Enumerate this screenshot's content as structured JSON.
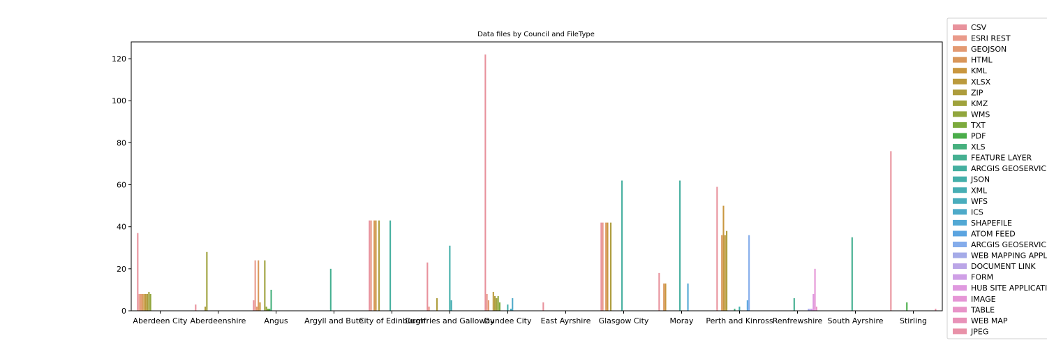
{
  "chart_data": {
    "type": "bar",
    "title": "Data files by Council and FileType",
    "xlabel": "",
    "ylabel": "",
    "ylim": [
      0,
      128
    ],
    "yticks": [
      0,
      20,
      40,
      60,
      80,
      100,
      120
    ],
    "legend_position": "right",
    "categories": [
      "Aberdeen City",
      "Aberdeenshire",
      "Angus",
      "Argyll and Bute",
      "City of Edinburgh",
      "Dumfries and Galloway",
      "Dundee City",
      "East Ayrshire",
      "Glasgow City",
      "Moray",
      "Perth and Kinross",
      "Renfrewshire",
      "South Ayrshire",
      "Stirling"
    ],
    "series": [
      {
        "name": "CSV",
        "color": "#e8929c",
        "values": [
          37,
          3,
          5,
          0,
          43,
          23,
          122,
          4,
          42,
          18,
          59,
          0,
          0,
          76
        ]
      },
      {
        "name": "ESRI REST",
        "color": "#e99a8a",
        "values": [
          8,
          0,
          24,
          0,
          43,
          2,
          8,
          0,
          42,
          0,
          0,
          0,
          0,
          0
        ]
      },
      {
        "name": "GEOJSON",
        "color": "#e39a72",
        "values": [
          8,
          0,
          2,
          0,
          0,
          0,
          5,
          0,
          0,
          0,
          0,
          0,
          0,
          0
        ]
      },
      {
        "name": "HTML",
        "color": "#d9975a",
        "values": [
          8,
          0,
          24,
          0,
          43,
          0,
          0,
          0,
          42,
          13,
          36,
          0,
          0,
          0
        ]
      },
      {
        "name": "KML",
        "color": "#c9973f",
        "values": [
          8,
          0,
          4,
          0,
          43,
          0,
          0,
          0,
          42,
          13,
          50,
          0,
          0,
          0
        ]
      },
      {
        "name": "XLSX",
        "color": "#bb9a3d",
        "values": [
          8,
          0,
          0,
          0,
          0,
          0,
          9,
          0,
          0,
          0,
          36,
          0,
          0,
          0
        ]
      },
      {
        "name": "ZIP",
        "color": "#ad9c3c",
        "values": [
          8,
          2,
          0,
          0,
          43,
          6,
          7,
          0,
          42,
          0,
          38,
          0,
          0,
          0
        ]
      },
      {
        "name": "KMZ",
        "color": "#9fa23c",
        "values": [
          9,
          28,
          24,
          0,
          0,
          0,
          6,
          0,
          0,
          0,
          0,
          0,
          0,
          0
        ]
      },
      {
        "name": "WMS",
        "color": "#91a63d",
        "values": [
          8,
          0,
          2,
          0,
          0,
          0,
          7,
          0,
          0,
          0,
          0,
          0,
          0,
          0
        ]
      },
      {
        "name": "TXT",
        "color": "#7caa3d",
        "values": [
          0,
          0,
          1,
          0,
          0,
          0,
          4,
          0,
          0,
          0,
          0,
          0,
          0,
          0
        ]
      },
      {
        "name": "PDF",
        "color": "#4aad4a",
        "values": [
          0,
          0,
          1,
          0,
          0,
          0,
          0,
          0,
          0,
          0,
          0,
          0,
          0,
          4
        ]
      },
      {
        "name": "XLS",
        "color": "#46b07e",
        "values": [
          0,
          0,
          10,
          0,
          0,
          0,
          0,
          0,
          0,
          0,
          1,
          0,
          0,
          0
        ]
      },
      {
        "name": "FEATURE LAYER",
        "color": "#45b091",
        "values": [
          0,
          0,
          0,
          20,
          0,
          0,
          0,
          0,
          0,
          0,
          0,
          6,
          35,
          0
        ]
      },
      {
        "name": "ARCGIS GEOSERVICE",
        "color": "#44af9f",
        "values": [
          0,
          0,
          0,
          0,
          43,
          0,
          0,
          0,
          62,
          62,
          0,
          0,
          0,
          0
        ]
      },
      {
        "name": "JSON",
        "color": "#44afaa",
        "values": [
          0,
          0,
          0,
          0,
          0,
          31,
          3,
          0,
          0,
          0,
          2,
          0,
          0,
          0
        ]
      },
      {
        "name": "XML",
        "color": "#47aeb4",
        "values": [
          0,
          0,
          0,
          0,
          0,
          5,
          0,
          0,
          0,
          0,
          0,
          0,
          0,
          0
        ]
      },
      {
        "name": "WFS",
        "color": "#4aadbd",
        "values": [
          0,
          0,
          0,
          0,
          0,
          0,
          1,
          0,
          0,
          0,
          0,
          0,
          0,
          0
        ]
      },
      {
        "name": "ICS",
        "color": "#4eaac9",
        "values": [
          0,
          0,
          0,
          0,
          0,
          0,
          6,
          0,
          0,
          0,
          0,
          0,
          0,
          0
        ]
      },
      {
        "name": "SHAPEFILE",
        "color": "#52a8d4",
        "values": [
          0,
          0,
          0,
          0,
          0,
          0,
          0,
          0,
          0,
          13,
          0,
          0,
          0,
          0
        ]
      },
      {
        "name": "ATOM FEED",
        "color": "#5ba4e0",
        "values": [
          0,
          0,
          0,
          0,
          0,
          0,
          0,
          0,
          0,
          0,
          5,
          0,
          0,
          0
        ]
      },
      {
        "name": "ARCGIS GEOSERVICES REST API",
        "color": "#84aceb",
        "values": [
          0,
          0,
          0,
          0,
          0,
          0,
          0,
          0,
          0,
          0,
          36,
          0,
          0,
          0
        ]
      },
      {
        "name": "WEB MAPPING APPLICATION",
        "color": "#a5abe8",
        "values": [
          0,
          0,
          0,
          0,
          0,
          0,
          0,
          0,
          0,
          0,
          0,
          1,
          0,
          0
        ]
      },
      {
        "name": "DOCUMENT LINK",
        "color": "#bba6e7",
        "values": [
          0,
          0,
          0,
          0,
          0,
          0,
          0,
          0,
          0,
          0,
          0,
          1,
          0,
          0
        ]
      },
      {
        "name": "FORM",
        "color": "#cf9fe6",
        "values": [
          0,
          0,
          0,
          0,
          0,
          0,
          0,
          0,
          0,
          0,
          0,
          1,
          0,
          0
        ]
      },
      {
        "name": "HUB SITE APPLICATION",
        "color": "#df99df",
        "values": [
          0,
          0,
          0,
          0,
          0,
          0,
          0,
          0,
          0,
          0,
          0,
          8,
          0,
          0
        ]
      },
      {
        "name": "IMAGE",
        "color": "#e596d6",
        "values": [
          0,
          0,
          0,
          0,
          0,
          0,
          0,
          0,
          0,
          0,
          0,
          20,
          0,
          0
        ]
      },
      {
        "name": "TABLE",
        "color": "#e894c8",
        "values": [
          0,
          0,
          0,
          0,
          0,
          0,
          0,
          0,
          0,
          0,
          0,
          2,
          0,
          0
        ]
      },
      {
        "name": "WEB MAP",
        "color": "#e892b8",
        "values": [
          0,
          0,
          0,
          0,
          0,
          0,
          0,
          0,
          0,
          0,
          0,
          0,
          0,
          0
        ]
      },
      {
        "name": "JPEG",
        "color": "#e891a8",
        "values": [
          0,
          0,
          0,
          0,
          0,
          0,
          0,
          0,
          0,
          0,
          0,
          0,
          0,
          1
        ]
      }
    ]
  }
}
